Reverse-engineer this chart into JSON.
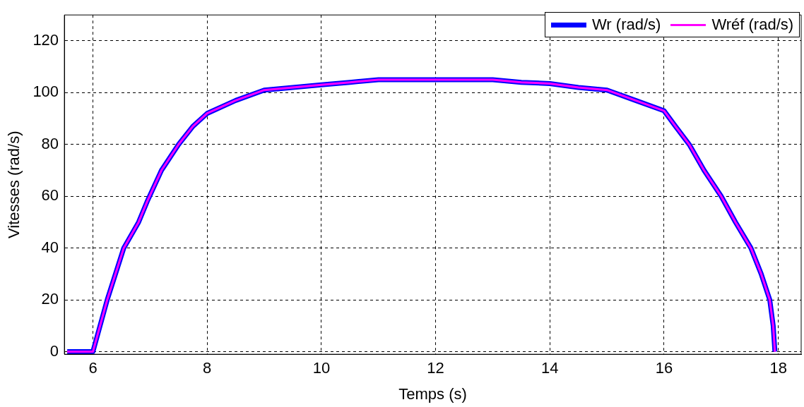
{
  "chart_data": {
    "type": "line",
    "xlabel": "Temps (s)",
    "ylabel": "Vitesses (rad/s)",
    "xlim": [
      5.5,
      18.4
    ],
    "ylim": [
      -1,
      130
    ],
    "xticks": [
      6,
      8,
      10,
      12,
      14,
      16,
      18
    ],
    "yticks": [
      0,
      20,
      40,
      60,
      80,
      100,
      120
    ],
    "grid": true,
    "legend": "top right",
    "marker": "none",
    "line_style": "solid",
    "x": [
      5.55,
      6.0,
      6.25,
      6.54,
      6.8,
      6.95,
      7.2,
      7.5,
      7.75,
      8.0,
      8.5,
      9.0,
      9.5,
      10.0,
      10.5,
      11.0,
      11.5,
      12.0,
      12.5,
      13.0,
      13.5,
      14.0,
      14.5,
      15.0,
      15.5,
      16.0,
      16.2,
      16.44,
      16.7,
      17.0,
      17.25,
      17.52,
      17.7,
      17.85,
      17.91,
      17.94
    ],
    "series": [
      {
        "name": "Wr (rad/s)",
        "color": "#0000ff",
        "values": [
          0,
          0,
          20,
          40,
          50,
          58,
          70,
          80,
          87,
          92,
          97,
          101,
          102,
          103,
          104,
          105,
          105,
          105,
          105,
          105,
          104,
          103.5,
          102,
          101,
          97,
          93,
          87,
          80,
          70,
          60,
          50,
          40,
          30,
          20,
          10,
          0
        ]
      },
      {
        "name": "Wréf (rad/s)",
        "color": "#ff00ff",
        "values": [
          0,
          0,
          20,
          40,
          50,
          58,
          70,
          80,
          87,
          92,
          97,
          101,
          102,
          103,
          104,
          105,
          105,
          105,
          105,
          105,
          104,
          103.5,
          102,
          101,
          97,
          93,
          87,
          80,
          70,
          60,
          50,
          40,
          30,
          20,
          10,
          0
        ]
      }
    ]
  }
}
